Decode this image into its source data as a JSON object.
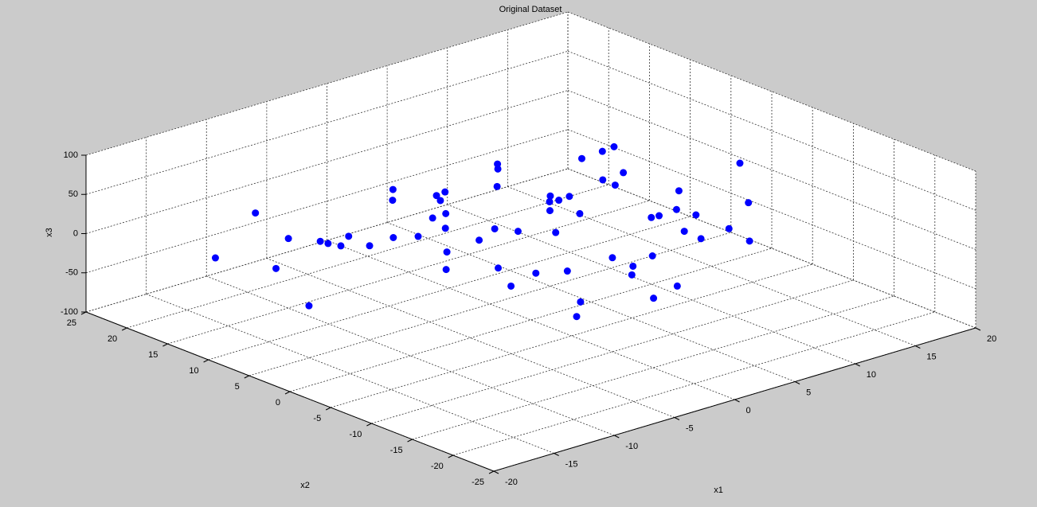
{
  "chart_data": {
    "type": "scatter3d",
    "title": "Original Dataset",
    "xlabel": "x1",
    "ylabel": "x2",
    "zlabel": "x3",
    "xlim": [
      -20,
      20
    ],
    "ylim": [
      -25,
      25
    ],
    "zlim": [
      -100,
      100
    ],
    "xticks": [
      -20,
      -15,
      -10,
      -5,
      0,
      5,
      10,
      15,
      20
    ],
    "yticks": [
      -25,
      -20,
      -15,
      -10,
      -5,
      0,
      5,
      10,
      15,
      20,
      25
    ],
    "zticks": [
      -100,
      -50,
      0,
      50,
      100
    ],
    "grid": true,
    "color": "#0000ff",
    "x": [
      -14,
      -12,
      -11,
      -10,
      -9,
      -8,
      -8,
      -7,
      -6,
      -6,
      -5,
      -5,
      -4,
      -4,
      -3,
      -3,
      -2,
      -2,
      -1,
      -1,
      0,
      0,
      1,
      1,
      2,
      2,
      3,
      3,
      4,
      4,
      5,
      5,
      6,
      6,
      7,
      7,
      8,
      8,
      9,
      9,
      10,
      10,
      11,
      12,
      13,
      14,
      15,
      16,
      -13,
      -9,
      -7,
      -3,
      2,
      6,
      11,
      -10,
      -5,
      0,
      4,
      8,
      12,
      -2,
      3,
      7
    ],
    "y": [
      18,
      12,
      15,
      5,
      10,
      2,
      14,
      -4,
      8,
      16,
      -8,
      3,
      11,
      -12,
      6,
      -2,
      14,
      -6,
      9,
      -14,
      4,
      -10,
      12,
      -3,
      7,
      -15,
      1,
      16,
      -9,
      10,
      -5,
      5,
      -12,
      13,
      -1,
      8,
      -7,
      3,
      11,
      -11,
      0,
      6,
      -4,
      2,
      9,
      -6,
      4,
      -2,
      8,
      -3,
      12,
      0,
      15,
      -9,
      10,
      19,
      -13,
      -6,
      17,
      -15,
      13,
      -18,
      6,
      0
    ],
    "z": [
      -30,
      10,
      -45,
      20,
      -5,
      35,
      -20,
      50,
      0,
      -40,
      15,
      -25,
      40,
      -10,
      25,
      -35,
      5,
      45,
      -15,
      30,
      -50,
      20,
      10,
      -30,
      55,
      -5,
      35,
      -20,
      0,
      40,
      -45,
      15,
      25,
      -10,
      60,
      -25,
      5,
      30,
      -35,
      20,
      -15,
      45,
      0,
      -30,
      25,
      10,
      -20,
      35,
      -55,
      40,
      -10,
      30,
      -40,
      50,
      15,
      5,
      -20,
      60,
      -35,
      25,
      -50,
      10,
      -25,
      40
    ]
  }
}
